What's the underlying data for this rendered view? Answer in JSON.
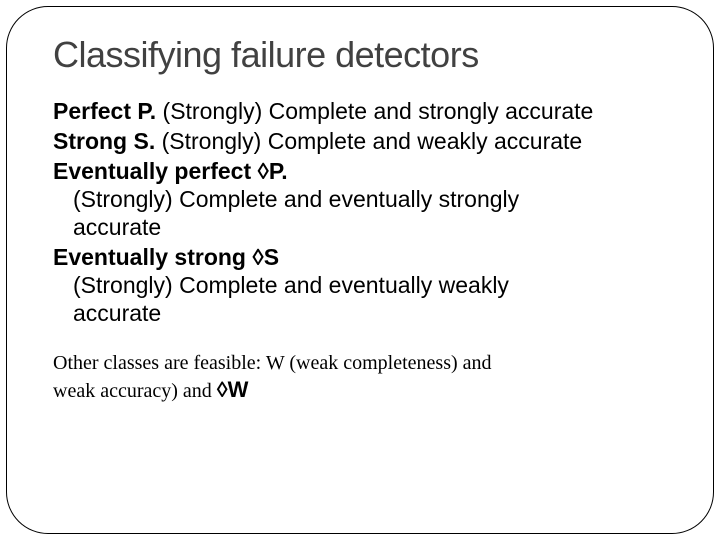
{
  "slide": {
    "title": "Classifying failure detectors",
    "title_color": "#414141",
    "title_fontsize": 36,
    "body_fontsize": 23,
    "footer_fontsize": 20,
    "background_color": "#ffffff",
    "frame_border_color": "#000000",
    "frame_border_radius": 42,
    "items": [
      {
        "lead": "Perfect P.",
        "desc": " (Strongly) Complete and strongly accurate",
        "inline": true
      },
      {
        "lead": "Strong S.",
        "desc": " (Strongly) Complete and weakly accurate",
        "inline": true
      },
      {
        "lead": "Eventually perfect ◊P.",
        "desc_lines": [
          "(Strongly) Complete and eventually strongly",
          "accurate"
        ],
        "inline": false
      },
      {
        "lead": "Eventually strong ◊S",
        "desc_lines": [
          "(Strongly) Complete and eventually weakly",
          "accurate"
        ],
        "inline": false
      }
    ],
    "footer": {
      "line1": "Other classes are feasible: W (weak completeness) and",
      "line2_prefix": "weak accuracy) and ",
      "line2_symbol": "◊W"
    }
  }
}
